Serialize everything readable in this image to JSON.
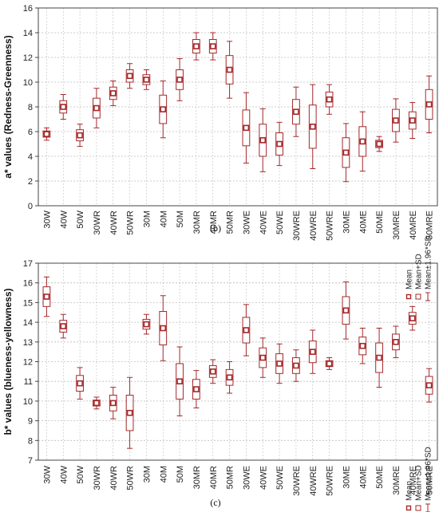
{
  "colors": {
    "series": "#a5282a",
    "grid": "#bdbdbd",
    "frame": "#444444"
  },
  "chart_data": [
    {
      "type": "boxplot",
      "caption": "(b)",
      "ylabel": "a* values (Redness-Greenness)",
      "ylim": [
        0,
        16
      ],
      "yticks": [
        0,
        2,
        4,
        6,
        8,
        10,
        12,
        14,
        16
      ],
      "grid": true,
      "legend": {
        "position": "right",
        "entries": [
          "Mean",
          "Mean+SD",
          "Mean±1.96*SD"
        ]
      },
      "categories": [
        "30W",
        "40W",
        "50W",
        "30WR",
        "40WR",
        "50WR",
        "30M",
        "40M",
        "50M",
        "30MR",
        "40MR",
        "50MR",
        "30WE",
        "40WE",
        "50WE",
        "30WRE",
        "40WRE",
        "50WRE",
        "30ME",
        "40ME",
        "50ME",
        "30MRE",
        "40MRE",
        "50MRE"
      ],
      "mean": [
        5.8,
        8.0,
        5.7,
        7.9,
        9.1,
        10.5,
        10.2,
        7.8,
        10.2,
        12.9,
        12.9,
        11.0,
        6.3,
        5.3,
        5.0,
        7.6,
        6.4,
        8.6,
        4.3,
        5.2,
        5.0,
        6.9,
        6.9,
        8.2
      ],
      "sd": [
        0.25,
        0.5,
        0.45,
        0.8,
        0.5,
        0.5,
        0.4,
        1.15,
        0.8,
        0.55,
        0.55,
        1.15,
        1.45,
        1.3,
        0.9,
        1.0,
        1.75,
        0.6,
        1.2,
        1.2,
        0.3,
        0.9,
        0.7,
        1.2
      ],
      "sd196": [
        0.5,
        1.0,
        0.9,
        1.6,
        1.0,
        1.0,
        0.8,
        2.3,
        1.7,
        1.1,
        1.1,
        2.3,
        2.85,
        2.55,
        1.75,
        2.0,
        3.4,
        1.2,
        2.35,
        2.4,
        0.6,
        1.75,
        1.45,
        2.3
      ]
    },
    {
      "type": "boxplot",
      "caption": "(c)",
      "ylabel": "b* values (blueness-yellowness)",
      "ylim": [
        7,
        17
      ],
      "yticks": [
        7,
        8,
        9,
        10,
        11,
        12,
        13,
        14,
        15,
        16,
        17
      ],
      "grid": true,
      "legend": {
        "position": "right",
        "entries": [
          "Mean",
          "Mean+SD",
          "Mean±1.96*SD"
        ]
      },
      "categories": [
        "30W",
        "40W",
        "50W",
        "30WR",
        "40WR",
        "50WR",
        "30M",
        "40M",
        "50M",
        "30MR",
        "40MR",
        "50MR",
        "30WE",
        "40WE",
        "50WE",
        "30WRE",
        "40WRE",
        "50WRE",
        "30ME",
        "40ME",
        "50ME",
        "30MRE",
        "40MRE",
        "50MRE"
      ],
      "mean": [
        15.3,
        13.8,
        10.9,
        9.9,
        9.9,
        9.4,
        13.9,
        13.7,
        11.0,
        10.6,
        11.5,
        11.2,
        13.6,
        12.2,
        11.9,
        11.8,
        12.5,
        11.9,
        14.6,
        12.8,
        12.2,
        13.0,
        14.2,
        10.8
      ],
      "sd": [
        0.5,
        0.3,
        0.4,
        0.15,
        0.4,
        0.9,
        0.25,
        0.85,
        0.9,
        0.5,
        0.3,
        0.4,
        0.65,
        0.5,
        0.5,
        0.4,
        0.55,
        0.15,
        0.7,
        0.45,
        0.75,
        0.4,
        0.3,
        0.45
      ],
      "sd196": [
        1.0,
        0.6,
        0.8,
        0.3,
        0.8,
        1.8,
        0.5,
        1.65,
        1.75,
        0.95,
        0.6,
        0.8,
        1.3,
        1.0,
        1.0,
        0.8,
        1.1,
        0.3,
        1.45,
        0.9,
        1.5,
        0.8,
        0.6,
        0.85
      ]
    }
  ]
}
